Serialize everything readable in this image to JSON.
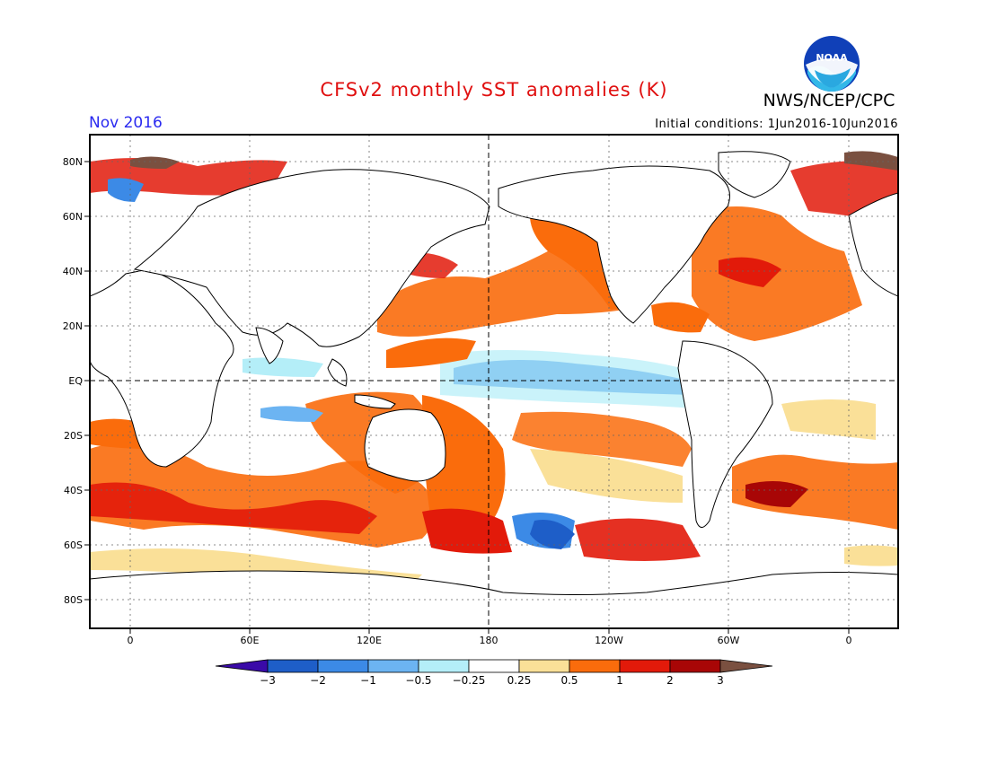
{
  "header": {
    "title": "CFSv2 monthly SST anomalies (K)",
    "agency": "NWS/NCEP/CPC",
    "logo_text": "NOAA",
    "month": "Nov 2016",
    "initial_conditions": "Initial conditions: 1Jun2016-10Jun2016"
  },
  "map": {
    "lat_labels": [
      "80N",
      "60N",
      "40N",
      "20N",
      "EQ",
      "20S",
      "40S",
      "60S",
      "80S"
    ],
    "lon_labels": [
      "0",
      "60E",
      "120E",
      "180",
      "120W",
      "60W",
      "0"
    ]
  },
  "legend": {
    "ticks": [
      "-3",
      "-2",
      "-1",
      "-0.5",
      "-0.25",
      "0.25",
      "0.5",
      "1",
      "2",
      "3"
    ],
    "colors": [
      "#3a0aa8",
      "#1e5ec8",
      "#3c8ae6",
      "#6cb4f2",
      "#b4eef8",
      "#ffffff",
      "#fae098",
      "#fa6c0c",
      "#e21a0a",
      "#a80606",
      "#7a5040"
    ]
  }
}
